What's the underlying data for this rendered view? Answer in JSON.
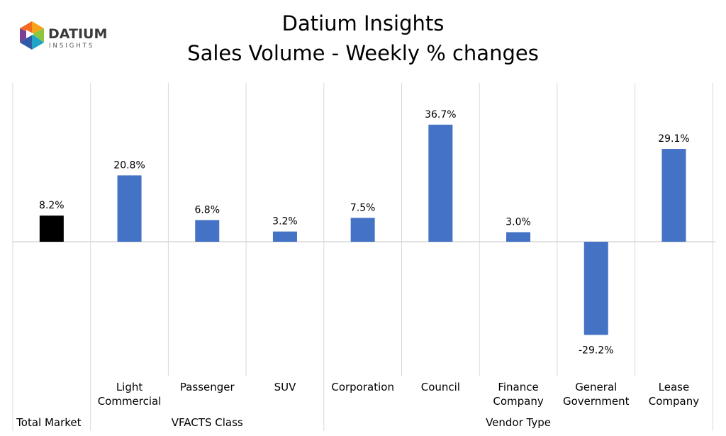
{
  "logo": {
    "name": "DATIUM",
    "sub": "INSIGHTS"
  },
  "title_lines": [
    "Datium Insights",
    "Sales Volume - Weekly % changes"
  ],
  "colors": {
    "total": "#000000",
    "bars": "#4472c4",
    "grid": "#d9d9d9",
    "axis": "#d9d9d9"
  },
  "chart_data": {
    "type": "bar",
    "title": "Datium Insights\nSales Volume - Weekly % changes",
    "categories": [
      [
        "Total Market"
      ],
      [
        "Light",
        "Commercial"
      ],
      [
        "Passenger"
      ],
      [
        "SUV"
      ],
      [
        "Corporation"
      ],
      [
        "Council"
      ],
      [
        "Finance",
        "Company"
      ],
      [
        "General",
        "Government"
      ],
      [
        "Lease",
        "Company"
      ]
    ],
    "values": [
      8.2,
      20.8,
      6.8,
      3.2,
      7.5,
      36.7,
      3.0,
      -29.2,
      29.1
    ],
    "value_labels": [
      "8.2%",
      "20.8%",
      "6.8%",
      "3.2%",
      "7.5%",
      "36.7%",
      "3.0%",
      "-29.2%",
      "29.1%"
    ],
    "groups": [
      {
        "label": "",
        "members": [
          0
        ]
      },
      {
        "label": "VFACTS Class",
        "members": [
          1,
          2,
          3
        ]
      },
      {
        "label": "Vendor Type",
        "members": [
          4,
          5,
          6,
          7,
          8
        ]
      }
    ],
    "group_label_0": "Total Market",
    "ylim": [
      -50,
      50
    ],
    "grid": true,
    "legend": false
  }
}
